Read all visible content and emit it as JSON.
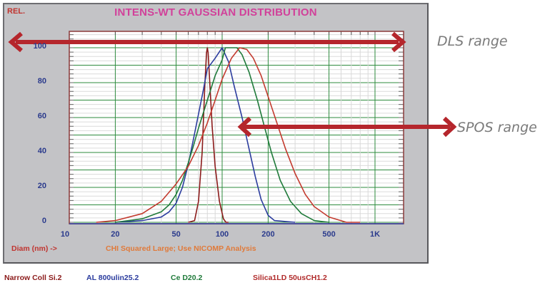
{
  "chart_data": {
    "type": "line",
    "title": "INTENS-WT GAUSSIAN DISTRIBUTION",
    "ylabel": "REL.",
    "xlabel": "Diam (nm) ->",
    "xscale": "log",
    "xlim": [
      10,
      1540
    ],
    "ylim": [
      0,
      100
    ],
    "x_ticks": [
      "10",
      "20",
      "50",
      "100",
      "200",
      "500",
      "1K"
    ],
    "y_ticks": [
      "0",
      "20",
      "40",
      "60",
      "80",
      "100"
    ],
    "grid": true,
    "note": "CHI Squared Large; Use NICOMP Analysis",
    "legend_position": "bottom",
    "series": [
      {
        "name": "Narrow Coll Si.2",
        "color": "#8b1a1a",
        "x": [
          60,
          66,
          70,
          74,
          77,
          79,
          80,
          81,
          83,
          86,
          90,
          96,
          102,
          106,
          110
        ],
        "y": [
          0,
          1,
          12,
          40,
          78,
          97,
          100,
          97,
          80,
          55,
          32,
          12,
          2,
          0,
          0
        ]
      },
      {
        "name": "AL 800ulin25.2",
        "color": "#2b3c9e",
        "x": [
          20,
          30,
          40,
          45,
          50,
          55,
          60,
          65,
          70,
          75,
          80,
          90,
          100,
          110,
          120,
          135,
          150,
          165,
          180,
          200,
          220,
          300
        ],
        "y": [
          0,
          1,
          3,
          6,
          11,
          20,
          33,
          48,
          62,
          75,
          88,
          94,
          100,
          92,
          78,
          60,
          42,
          26,
          13,
          4,
          1,
          0
        ]
      },
      {
        "name": "Ce D20.2",
        "color": "#1f7a3a",
        "x": [
          20,
          30,
          40,
          45,
          50,
          55,
          60,
          65,
          70,
          80,
          90,
          100,
          105,
          115,
          125,
          135,
          150,
          170,
          190,
          210,
          240,
          280,
          330,
          400,
          500
        ],
        "y": [
          0,
          2,
          6,
          10,
          16,
          24,
          34,
          44,
          54,
          70,
          84,
          93,
          100,
          100,
          100,
          96,
          86,
          70,
          54,
          40,
          24,
          12,
          5,
          1,
          0
        ]
      },
      {
        "name": "Silica1LD 50usCH1.2",
        "color": "#c33a2e",
        "x": [
          15,
          20,
          30,
          40,
          50,
          60,
          70,
          80,
          90,
          100,
          115,
          130,
          145,
          160,
          180,
          200,
          230,
          260,
          300,
          350,
          400,
          500,
          650,
          800
        ],
        "y": [
          0,
          1,
          5,
          12,
          22,
          32,
          44,
          57,
          70,
          82,
          94,
          100,
          99,
          94,
          84,
          72,
          56,
          42,
          28,
          16,
          9,
          3,
          0,
          0
        ]
      }
    ]
  },
  "panel": {
    "title": "INTENS-WT GAUSSIAN DISTRIBUTION",
    "y_axis_label": "REL.",
    "x_axis_label": "Diam (nm) ->",
    "status_message": "CHI Squared Large; Use NICOMP Analysis"
  },
  "legend": [
    {
      "label": "Narrow Coll Si.2",
      "color": "#8b1a1a"
    },
    {
      "label": "AL 800ulin25.2",
      "color": "#2b3c9e"
    },
    {
      "label": "Ce D20.2",
      "color": "#1f7a3a"
    },
    {
      "label": "Silica1LD 50usCH1.2",
      "color": "#c33a2e"
    }
  ],
  "annotations": {
    "dls_label": "DLS range",
    "spos_label": "SPOS range",
    "arrow_color": "#b5262c"
  }
}
